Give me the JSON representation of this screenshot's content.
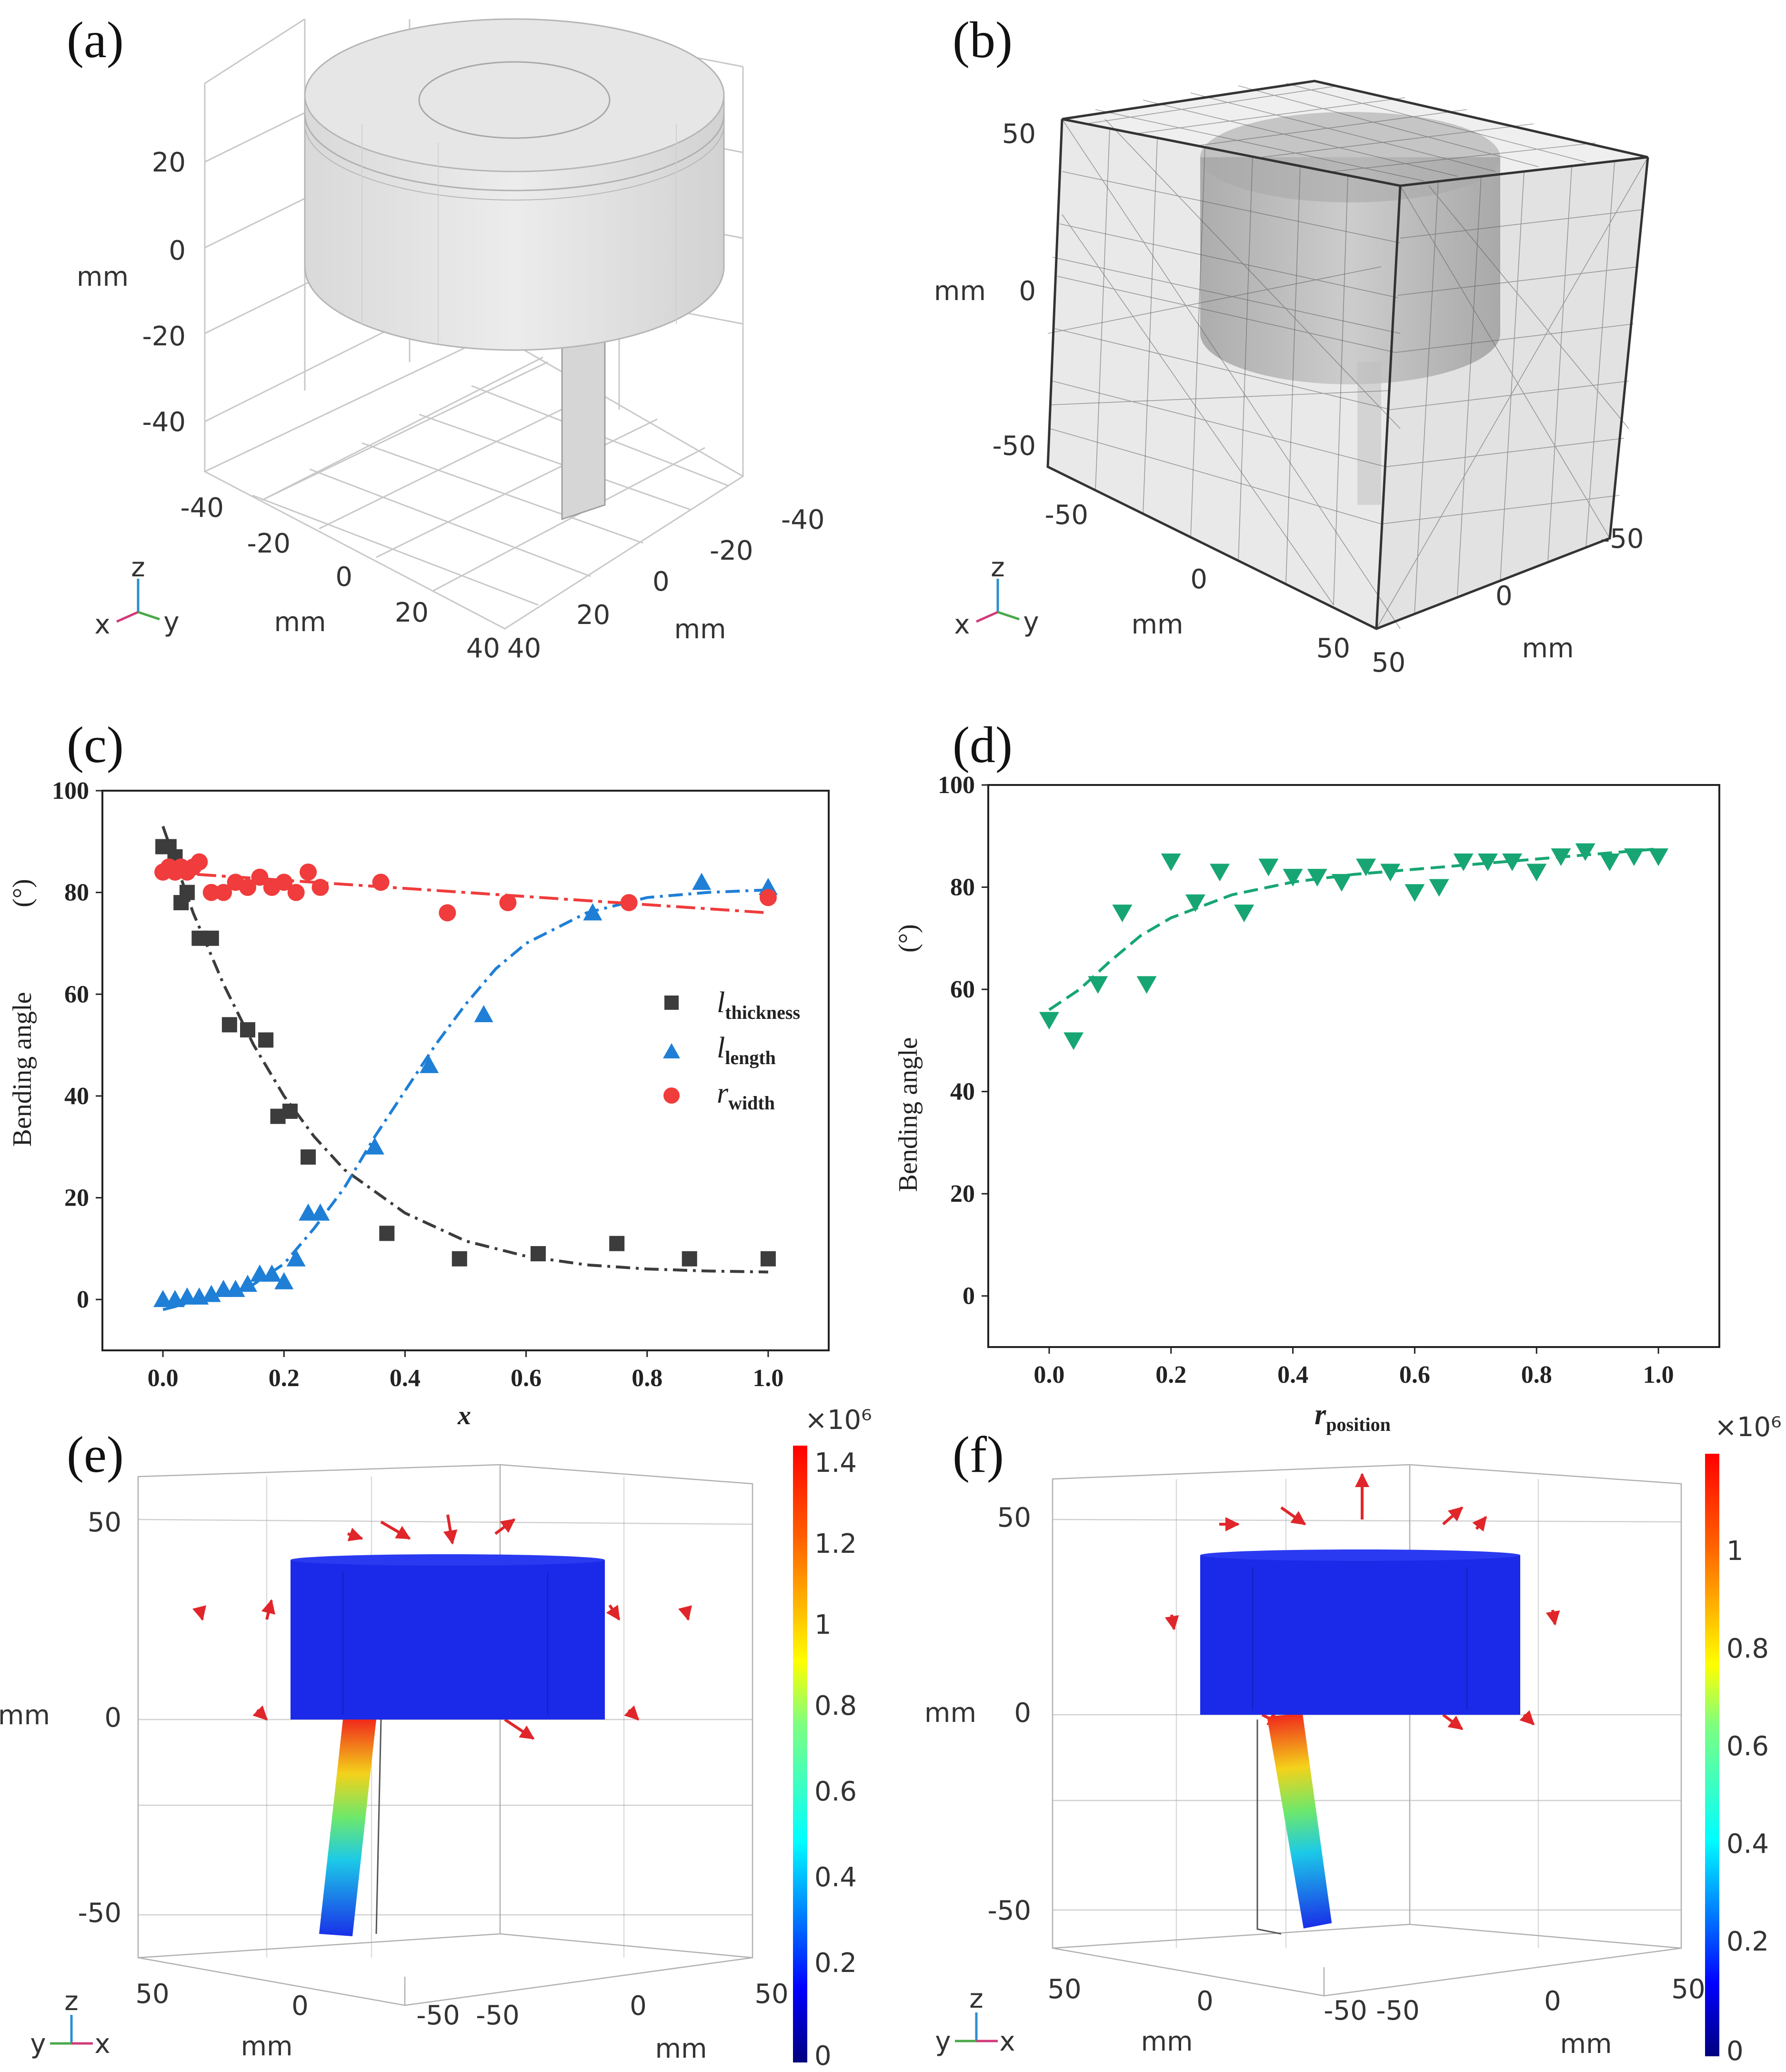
{
  "panels": {
    "a": {
      "label": "(a)",
      "z_ticks": [
        "20",
        "0",
        "-20",
        "-40"
      ],
      "z_unit": "mm",
      "x_ticks": [
        "-40",
        "-20",
        "0",
        "20",
        "40"
      ],
      "y_ticks": [
        "-40",
        "-20",
        "0",
        "20",
        "40"
      ],
      "x_unit": "mm",
      "y_unit": "mm",
      "triad": {
        "z": "z",
        "x": "x",
        "y": "y"
      }
    },
    "b": {
      "label": "(b)",
      "z_ticks": [
        "50",
        "0",
        "-50"
      ],
      "z_unit": "mm",
      "x_ticks": [
        "-50",
        "0",
        "50"
      ],
      "y_ticks": [
        "-50",
        "0",
        "50"
      ],
      "x_unit": "mm",
      "y_unit": "mm",
      "triad": {
        "z": "z",
        "x": "x",
        "y": "y"
      }
    },
    "c": {
      "label": "(c)"
    },
    "d": {
      "label": "(d)"
    },
    "e": {
      "label": "(e)",
      "z_ticks": [
        "50",
        "0",
        "-50"
      ],
      "z_unit": "mm",
      "left_ticks": [
        "50",
        "0",
        "-50"
      ],
      "right_ticks": [
        "-50",
        "0",
        "50"
      ],
      "left_unit": "mm",
      "right_unit": "mm",
      "colorbar": {
        "exponent": "×10⁶",
        "ticks": [
          "1.4",
          "1.2",
          "1",
          "0.8",
          "0.6",
          "0.4",
          "0.2",
          "0"
        ]
      },
      "triad": {
        "z": "z",
        "y": "y",
        "x": "x"
      }
    },
    "f": {
      "label": "(f)",
      "z_ticks": [
        "50",
        "0",
        "-50"
      ],
      "z_unit": "mm",
      "left_ticks": [
        "50",
        "0",
        "-50"
      ],
      "right_ticks": [
        "-50",
        "0",
        "50"
      ],
      "left_unit": "mm",
      "right_unit": "mm",
      "colorbar": {
        "exponent": "×10⁶",
        "ticks": [
          "1",
          "0.8",
          "0.6",
          "0.4",
          "0.2",
          "0"
        ]
      },
      "triad": {
        "z": "z",
        "y": "y",
        "x": "x"
      }
    }
  },
  "colors": {
    "thickness": "#3c3c3c",
    "length": "#1f7fd6",
    "width": "#f03c3c",
    "position": "#17a673"
  },
  "chart_data": [
    {
      "panel": "c",
      "type": "scatter",
      "xlabel": "x",
      "ylabel_main": "Bending angle",
      "ylabel_unit": "(°)",
      "xlim": [
        -0.1,
        1.1
      ],
      "ylim": [
        -10,
        100
      ],
      "x_ticks": [
        "0.0",
        "0.2",
        "0.4",
        "0.6",
        "0.8",
        "1.0"
      ],
      "y_ticks": [
        "0",
        "20",
        "40",
        "60",
        "80",
        "100"
      ],
      "legend_position": "center-right",
      "series": [
        {
          "name": "l",
          "sub": "thickness",
          "marker": "square",
          "x": [
            0.0,
            0.01,
            0.02,
            0.03,
            0.04,
            0.06,
            0.08,
            0.11,
            0.14,
            0.17,
            0.19,
            0.21,
            0.24,
            0.37,
            0.49,
            0.62,
            0.75,
            0.87,
            1.0
          ],
          "y": [
            89,
            89,
            87,
            78,
            80,
            71,
            71,
            54,
            53,
            51,
            36,
            37,
            28,
            13,
            8,
            9,
            11,
            8,
            8
          ],
          "fit_x": [
            0.0,
            0.05,
            0.1,
            0.15,
            0.2,
            0.25,
            0.3,
            0.4,
            0.5,
            0.6,
            0.7,
            0.8,
            0.9,
            1.0
          ],
          "fit_y": [
            93,
            76,
            62,
            50,
            40,
            32,
            25.5,
            17,
            11.5,
            8.5,
            6.8,
            6.0,
            5.6,
            5.4
          ]
        },
        {
          "name": "l",
          "sub": "length",
          "marker": "triangle",
          "x": [
            0.0,
            0.02,
            0.04,
            0.06,
            0.08,
            0.1,
            0.12,
            0.14,
            0.16,
            0.18,
            0.2,
            0.22,
            0.24,
            0.26,
            0.35,
            0.44,
            0.53,
            0.71,
            0.89,
            1.0
          ],
          "y": [
            0,
            0,
            0.5,
            0.5,
            1,
            2,
            2,
            3,
            5,
            5,
            3.5,
            8,
            17,
            17,
            30,
            46,
            56,
            76,
            82,
            81
          ],
          "fit_x": [
            0.0,
            0.1,
            0.15,
            0.2,
            0.25,
            0.3,
            0.35,
            0.4,
            0.45,
            0.5,
            0.55,
            0.6,
            0.7,
            0.8,
            0.9,
            1.0
          ],
          "fit_y": [
            -2,
            1,
            3,
            7,
            14,
            22,
            32,
            41,
            50,
            58,
            65,
            70,
            76,
            79,
            80,
            80.5
          ]
        },
        {
          "name": "r",
          "sub": "width",
          "marker": "circle",
          "x": [
            0.0,
            0.01,
            0.02,
            0.03,
            0.04,
            0.05,
            0.06,
            0.08,
            0.1,
            0.12,
            0.14,
            0.16,
            0.18,
            0.2,
            0.22,
            0.24,
            0.26,
            0.36,
            0.47,
            0.57,
            0.77,
            1.0
          ],
          "y": [
            84,
            85,
            84,
            85,
            84,
            85,
            86,
            80,
            80,
            82,
            81,
            83,
            81,
            82,
            80,
            84,
            81,
            82,
            76,
            78,
            78,
            79
          ],
          "fit_x": [
            0.0,
            1.0
          ],
          "fit_y": [
            84,
            76
          ]
        }
      ]
    },
    {
      "panel": "d",
      "type": "scatter",
      "xlabel": "r",
      "xlabel_sub": "position",
      "ylabel_main": "Bending angle",
      "ylabel_unit": "(°)",
      "xlim": [
        -0.1,
        1.1
      ],
      "ylim": [
        -10,
        100
      ],
      "x_ticks": [
        "0.0",
        "0.2",
        "0.4",
        "0.6",
        "0.8",
        "1.0"
      ],
      "y_ticks": [
        "0",
        "20",
        "40",
        "60",
        "80",
        "100"
      ],
      "series": [
        {
          "name": "r_position",
          "marker": "triangle-down",
          "x": [
            0.0,
            0.04,
            0.08,
            0.12,
            0.16,
            0.2,
            0.24,
            0.28,
            0.32,
            0.36,
            0.4,
            0.44,
            0.48,
            0.52,
            0.56,
            0.6,
            0.64,
            0.68,
            0.72,
            0.76,
            0.8,
            0.84,
            0.88,
            0.92,
            0.96,
            1.0
          ],
          "y": [
            54,
            50,
            61,
            75,
            61,
            85,
            77,
            83,
            75,
            84,
            82,
            82,
            81,
            84,
            83,
            79,
            80,
            85,
            85,
            85,
            83,
            86,
            87,
            85,
            86,
            86
          ],
          "fit_x": [
            0.0,
            0.05,
            0.1,
            0.15,
            0.2,
            0.3,
            0.4,
            0.5,
            0.6,
            0.7,
            0.8,
            0.9,
            1.0
          ],
          "fit_y": [
            56,
            60,
            65.5,
            70.5,
            74,
            78.5,
            81,
            82.5,
            83.5,
            84.5,
            85.5,
            86.5,
            87.5
          ]
        }
      ]
    }
  ]
}
